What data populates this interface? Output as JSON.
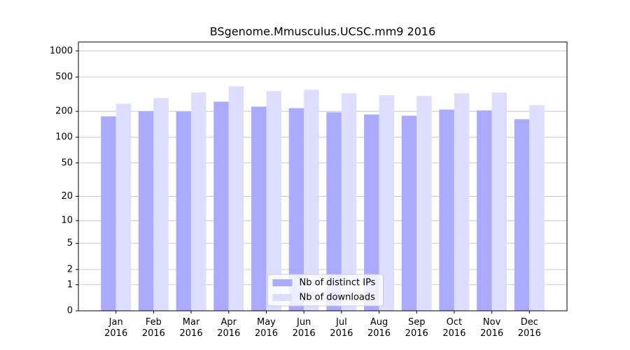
{
  "chart_data": {
    "type": "bar",
    "title": "BSgenome.Mmusculus.UCSC.mm9 2016",
    "categories": [
      "Jan\n2016",
      "Feb\n2016",
      "Mar\n2016",
      "Apr\n2016",
      "May\n2016",
      "Jun\n2016",
      "Jul\n2016",
      "Aug\n2016",
      "Sep\n2016",
      "Oct\n2016",
      "Nov\n2016",
      "Dec\n2016"
    ],
    "series": [
      {
        "name": "Nb of distinct IPs",
        "color": "#aaaaff",
        "values": [
          175,
          200,
          198,
          259,
          227,
          218,
          195,
          184,
          178,
          210,
          205,
          162
        ]
      },
      {
        "name": "Nb of downloads",
        "color": "#ddddff",
        "values": [
          245,
          285,
          331,
          391,
          343,
          356,
          324,
          307,
          301,
          324,
          331,
          236
        ]
      }
    ],
    "yscale": "symlog",
    "ylim": [
      0,
      1270
    ],
    "yticks": [
      0,
      1,
      2,
      5,
      10,
      20,
      50,
      100,
      200,
      500,
      1000
    ],
    "grid": true,
    "legend": "lower center"
  }
}
